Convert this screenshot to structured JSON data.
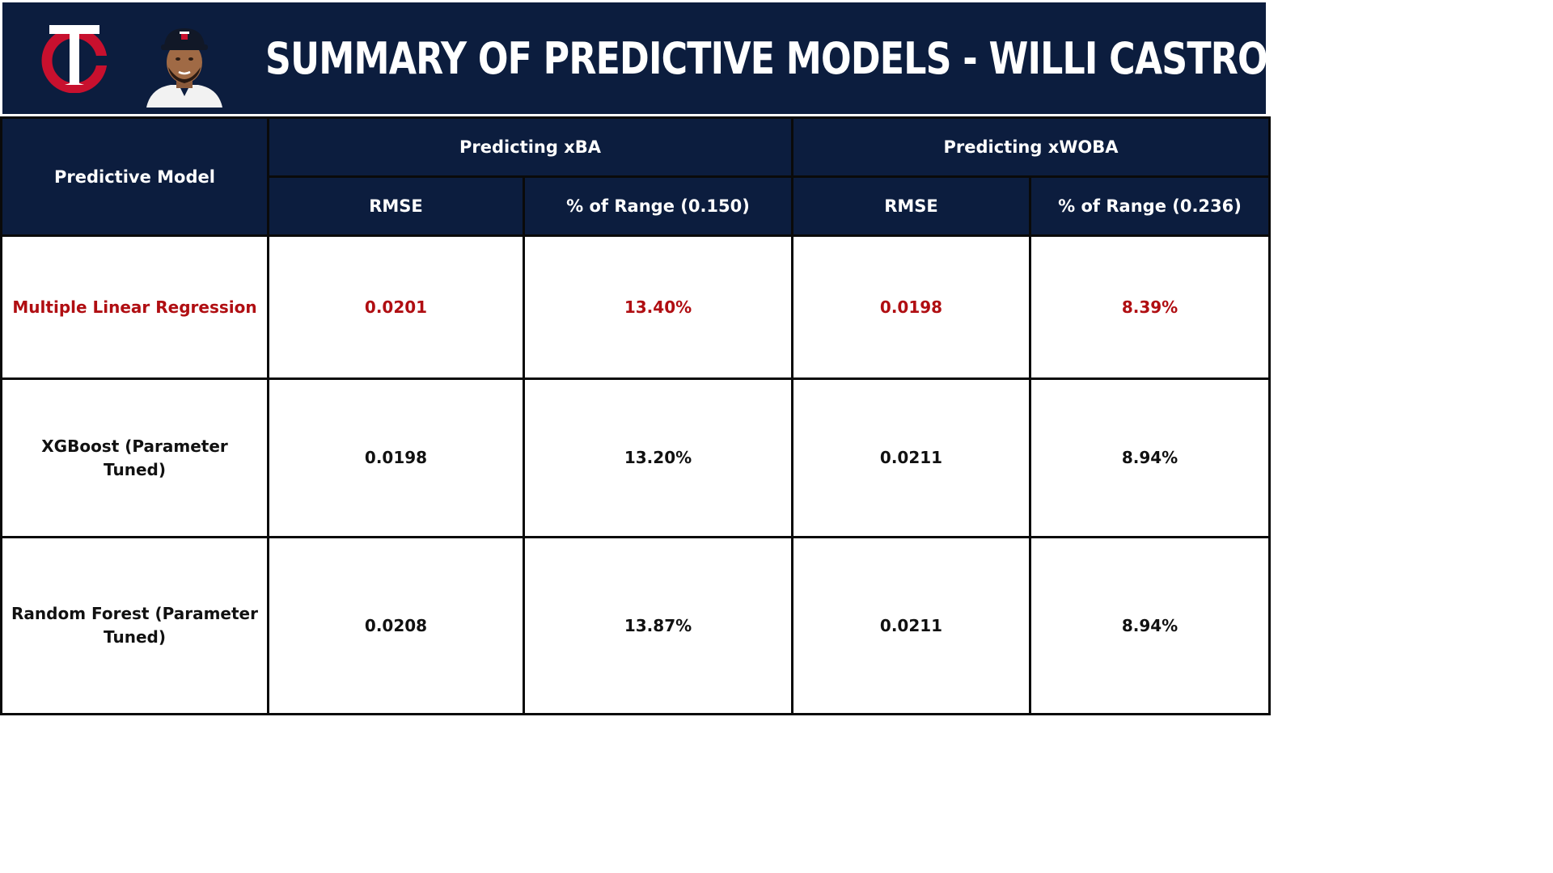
{
  "header": {
    "title": "SUMMARY OF PREDICTIVE MODELS - WILLI CASTRO",
    "logo_icon": "twins-tc-logo-icon",
    "avatar_icon": "player-headshot-icon",
    "colors": {
      "navy": "#0c1d3e",
      "red": "#c8102e",
      "highlight_text": "#b00e12"
    }
  },
  "table": {
    "model_header": "Predictive Model",
    "groups": [
      {
        "label": "Predicting xBA"
      },
      {
        "label": "Predicting xWOBA"
      }
    ],
    "subheaders": [
      "RMSE",
      "% of Range (0.150)",
      "RMSE",
      "% of Range (0.236)"
    ],
    "rows": [
      {
        "model": "Multiple Linear Regression",
        "xba_rmse": "0.0201",
        "xba_pct": "13.40%",
        "xwoba_rmse": "0.0198",
        "xwoba_pct": "8.39%",
        "highlighted": true
      },
      {
        "model": "XGBoost (Parameter Tuned)",
        "xba_rmse": "0.0198",
        "xba_pct": "13.20%",
        "xwoba_rmse": "0.0211",
        "xwoba_pct": "8.94%",
        "highlighted": false
      },
      {
        "model": "Random Forest (Parameter Tuned)",
        "xba_rmse": "0.0208",
        "xba_pct": "13.87%",
        "xwoba_rmse": "0.0211",
        "xwoba_pct": "8.94%",
        "highlighted": false
      }
    ]
  }
}
